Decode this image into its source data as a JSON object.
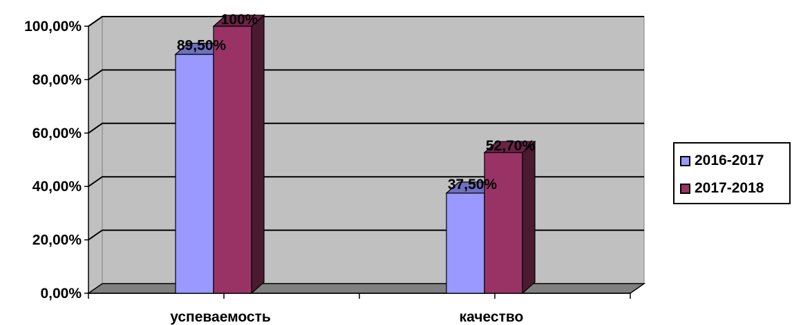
{
  "chart_data": {
    "type": "bar",
    "categories": [
      "успеваемость",
      "качество"
    ],
    "series": [
      {
        "name": "2016-2017",
        "values": [
          89.5,
          37.5
        ],
        "labels": [
          "89,50%",
          "37,50%"
        ],
        "color": "#9999FF"
      },
      {
        "name": "2017-2018",
        "values": [
          100,
          52.7
        ],
        "labels": [
          "100%",
          "52,70%"
        ],
        "color": "#993366"
      }
    ],
    "yticks": [
      "0,00%",
      "20,00%",
      "40,00%",
      "60,00%",
      "80,00%",
      "100,00%"
    ],
    "ylim": [
      0,
      100
    ],
    "grid": true,
    "legend": "right",
    "plot_background": "#C0C0C0"
  }
}
